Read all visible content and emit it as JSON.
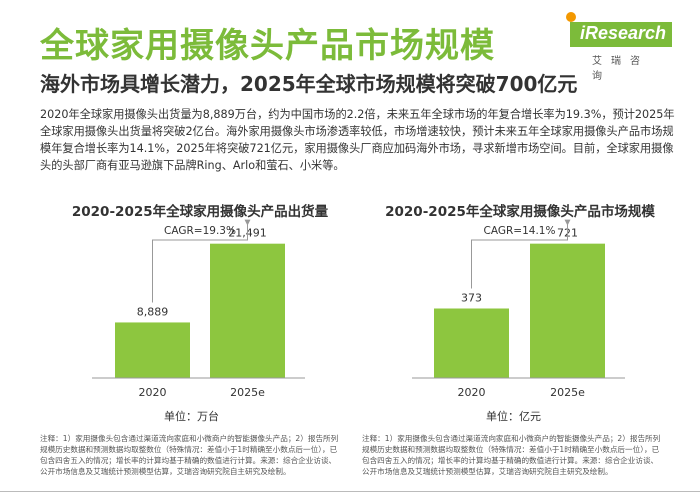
{
  "header": {
    "title": "全球家用摄像头产品市场规模",
    "logo_text": "iResearch",
    "logo_sub": "艾瑞咨询"
  },
  "subtitle": "海外市场具增长潜力，2025年全球市场规模将突破700亿元",
  "paragraph": "2020年全球家用摄像头出货量为8,889万台，约为中国市场的2.2倍，未来五年全球市场的年复合增长率为19.3%，预计2025年全球家用摄像头出货量将突破2亿台。海外家用摄像头市场渗透率较低，市场增速较快，预计未来五年全球家用摄像头产品市场规模年复合增长率为14.1%，2025年将突破721亿元，家用摄像头厂商应加码海外市场，寻求新增市场空间。目前，全球家用摄像头的头部厂商有亚马逊旗下品牌Ring、Arlo和萤石、小米等。",
  "colors": {
    "accent": "#7cbb3a",
    "bar": "#8dc63f"
  },
  "chart_data": [
    {
      "type": "bar",
      "title": "2020-2025年全球家用摄像头产品出货量",
      "categories": [
        "2020",
        "2025e"
      ],
      "values": [
        8889,
        21491
      ],
      "value_labels": [
        "8,889",
        "21,491"
      ],
      "annotation": "CAGR=19.3%",
      "unit": "单位：万台",
      "ylim": [
        0,
        24000
      ]
    },
    {
      "type": "bar",
      "title": "2020-2025年全球家用摄像头产品市场规模",
      "categories": [
        "2020",
        "2025e"
      ],
      "values": [
        373,
        721
      ],
      "value_labels": [
        "373",
        "721"
      ],
      "annotation": "CAGR=14.1%",
      "unit": "单位：亿元",
      "ylim": [
        0,
        805
      ]
    }
  ],
  "notes": [
    "注释：1）家用摄像头包含通过渠道流向家庭和小微商户的智能摄像头产品；2）报告所列规模历史数据和预测数据均取整数位（特殊情况：差值小于1时精确至小数点后一位），已包含四舍五入的情况；增长率的计算均基于精确的数值进行计算。来源：综合企业访谈、公开市场信息及艾瑞统计预测模型估算，艾瑞咨询研究院自主研究及绘制。",
    "注释：1）家用摄像头包含通过渠道流向家庭和小微商户的智能摄像头产品；2）报告所列规模历史数据和预测数据均取整数位（特殊情况：差值小于1时精确至小数点后一位），已包含四舍五入的情况；增长率的计算均基于精确的数值进行计算。来源：综合企业访谈、公开市场信息及艾瑞统计预测模型估算，艾瑞咨询研究院自主研究及绘制。"
  ]
}
